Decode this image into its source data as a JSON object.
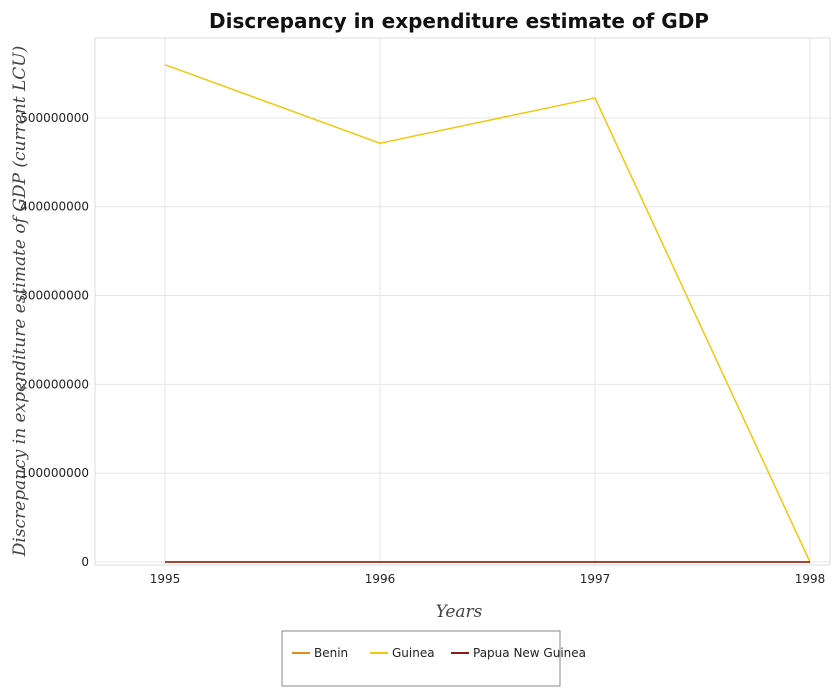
{
  "colors": {
    "benin": "#e08e1a",
    "guinea": "#f2c80f",
    "papua_new_guinea": "#8b1a1a",
    "grid": "#e6e6e6",
    "title": "#111111"
  },
  "chart_data": {
    "type": "line",
    "title": "Discrepancy in expenditure estimate of GDP",
    "xlabel": "Years",
    "ylabel": "Discrepancy in expenditure estimate of GDP (current LCU)",
    "categories": [
      "1995",
      "1996",
      "1997",
      "1998"
    ],
    "ylim": [
      0,
      590000000
    ],
    "yticks": [
      0,
      100000000,
      200000000,
      300000000,
      400000000,
      500000000
    ],
    "ytick_labels": [
      "0",
      "100000000",
      "200000000",
      "300000000",
      "400000000",
      "500000000"
    ],
    "grid": true,
    "legend_position": "bottom-center",
    "series": [
      {
        "name": "Benin",
        "colorKey": "benin",
        "values": [
          0,
          0,
          0,
          0
        ]
      },
      {
        "name": "Guinea",
        "colorKey": "guinea",
        "values": [
          560000000,
          471500000,
          522500000,
          0
        ]
      },
      {
        "name": "Papua New Guinea",
        "colorKey": "papua_new_guinea",
        "values": [
          0,
          0,
          0,
          0
        ]
      }
    ]
  }
}
